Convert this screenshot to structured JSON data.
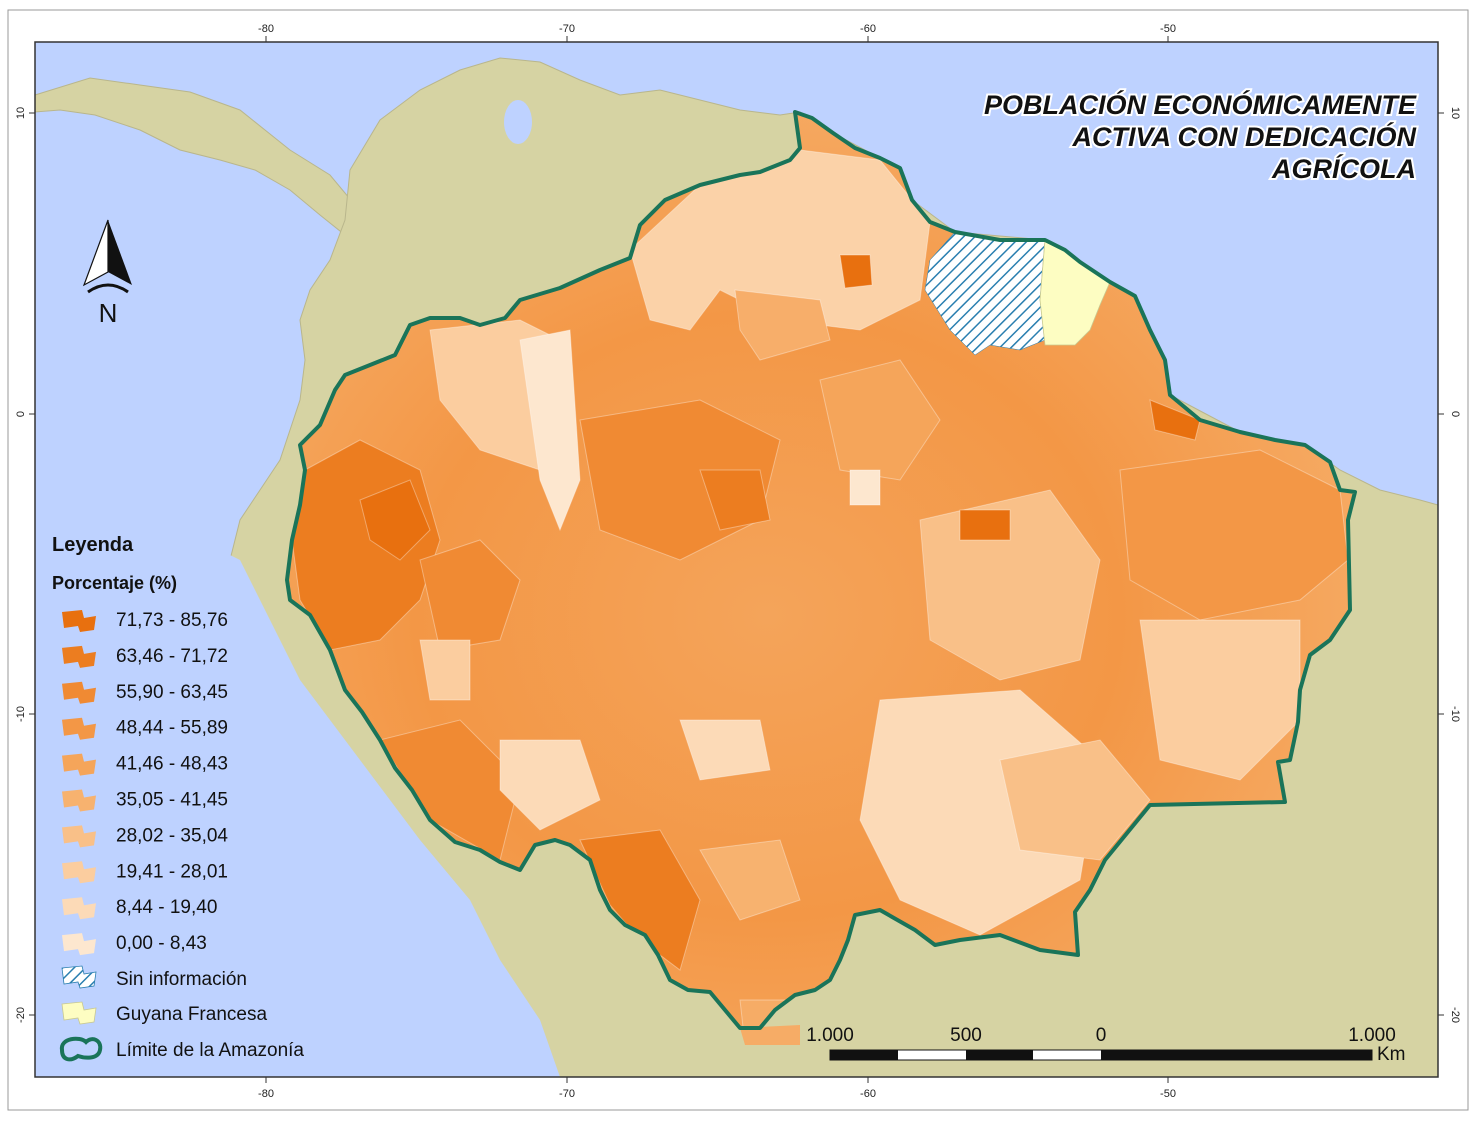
{
  "title_lines": [
    "POBLACIÓN ECONÓMICAMENTE",
    "ACTIVA CON DEDICACIÓN",
    "AGRÍCOLA"
  ],
  "axes": {
    "lon_ticks": [
      "-80",
      "-70",
      "-60",
      "-50"
    ],
    "lat_ticks": [
      "10",
      "0",
      "-10",
      "-20"
    ]
  },
  "north_label": "N",
  "legend": {
    "title": "Leyenda",
    "subtitle": "Porcentaje (%)",
    "classes": [
      {
        "label": "71,73 - 85,76",
        "color": "#e8700f"
      },
      {
        "label": "63,46 - 71,72",
        "color": "#ec7d20"
      },
      {
        "label": "55,90 - 63,45",
        "color": "#f08a33"
      },
      {
        "label": "48,44 - 55,89",
        "color": "#f39746"
      },
      {
        "label": "41,46 - 48,43",
        "color": "#f5a55a"
      },
      {
        "label": "35,05 - 41,45",
        "color": "#f7b26f"
      },
      {
        "label": "28,02 - 35,04",
        "color": "#f9c088"
      },
      {
        "label": "19,41 - 28,01",
        "color": "#fbcd9f"
      },
      {
        "label": "8,44 - 19,40",
        "color": "#fcdab7"
      },
      {
        "label": "0,00 - 8,43",
        "color": "#fde7cf"
      }
    ],
    "no_data_label": "Sin información",
    "guyana_label": "Guyana Francesa",
    "boundary_label": "Límite de la Amazonía"
  },
  "scale_bar": {
    "labels": [
      "1.000",
      "500",
      "0",
      "1.000"
    ],
    "unit": "Km"
  },
  "colors": {
    "ocean": "#bed2ff",
    "land": "#d6d3a3",
    "boundary": "#1a7459",
    "guyana": "#fdfdc2",
    "no_data_hatch": "#2a7fb0"
  }
}
